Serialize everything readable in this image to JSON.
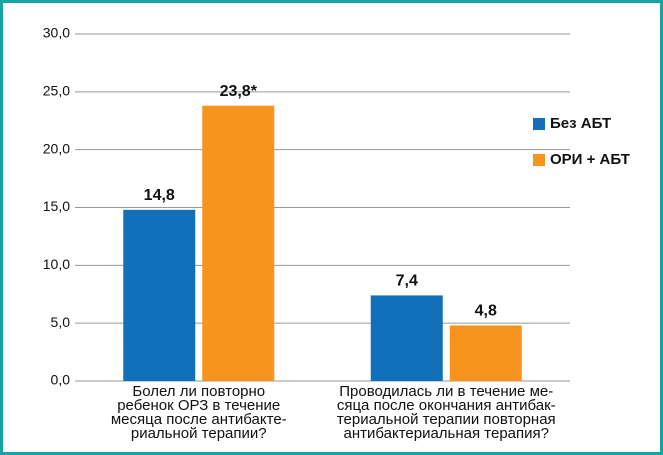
{
  "chart_data": {
    "type": "bar",
    "categories": [
      "Болел ли повторно\nребенок ОРЗ в течение\nмесяца после антибакте-\nриальной терапии?",
      "Проводилась ли в течение ме-\nсяца после окончания антибак-\nтериальной терапии повторная\nантибактериальная терапия?"
    ],
    "series": [
      {
        "name": "Без АБТ",
        "color": "#1170b9",
        "values": [
          14.8,
          7.4
        ],
        "value_labels": [
          "14,8",
          "7,4"
        ]
      },
      {
        "name": "ОРИ + АБТ",
        "color": "#f7941d",
        "values": [
          23.8,
          4.8
        ],
        "value_labels": [
          "23,8*",
          "4,8"
        ]
      }
    ],
    "ylim": [
      0,
      30
    ],
    "yticks": [
      {
        "value": 0,
        "label": "0,0"
      },
      {
        "value": 5,
        "label": "5,0"
      },
      {
        "value": 10,
        "label": "10,0"
      },
      {
        "value": 15,
        "label": "15,0"
      },
      {
        "value": 20,
        "label": "20,0"
      },
      {
        "value": 25,
        "label": "25,0"
      },
      {
        "value": 30,
        "label": "30,0"
      }
    ],
    "grid": true,
    "legend": "right"
  }
}
